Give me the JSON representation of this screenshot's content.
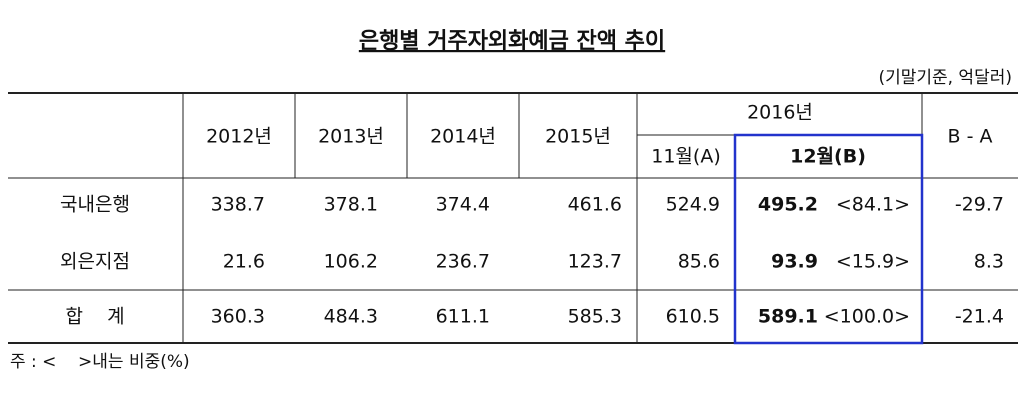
{
  "title": "은행별 거주자외화예금 잔액 추이",
  "unit": "(기말기준, 억달러)",
  "table": {
    "header": {
      "years": [
        "2012년",
        "2013년",
        "2014년",
        "2015년"
      ],
      "year_2016": "2016년",
      "months": [
        "11월(A)",
        "12월(B)"
      ],
      "diff": "B - A"
    },
    "rows": [
      {
        "label": "국내은행",
        "values": [
          338.7,
          378.1,
          374.4,
          461.6,
          524.9,
          495.2
        ],
        "share": "<84.1>",
        "diff": -29.7
      },
      {
        "label": "외은지점",
        "values": [
          21.6,
          106.2,
          236.7,
          123.7,
          85.6,
          93.9
        ],
        "share": "<15.9>",
        "diff": 8.3
      },
      {
        "label": "합    계",
        "values": [
          360.3,
          484.3,
          611.1,
          585.3,
          610.5,
          589.1
        ],
        "share": "<100.0>",
        "diff": -21.4
      }
    ]
  },
  "note": "주 : <    >내는 비중(%)"
}
